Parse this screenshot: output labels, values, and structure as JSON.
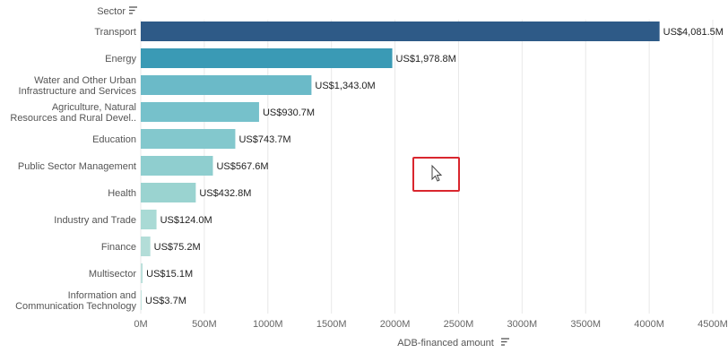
{
  "chart_data": {
    "type": "bar",
    "orientation": "horizontal",
    "ylabel": "Sector",
    "xlabel": "ADB-financed amount",
    "categories": [
      [
        "Transport"
      ],
      [
        "Energy"
      ],
      [
        "Water and Other Urban",
        "Infrastructure and Services"
      ],
      [
        "Agriculture, Natural",
        "Resources and Rural Devel.."
      ],
      [
        "Education"
      ],
      [
        "Public Sector Management"
      ],
      [
        "Health"
      ],
      [
        "Industry and Trade"
      ],
      [
        "Finance"
      ],
      [
        "Multisector"
      ],
      [
        "Information and",
        "Communication Technology"
      ]
    ],
    "values": [
      4081.5,
      1978.8,
      1343.0,
      930.7,
      743.7,
      567.6,
      432.8,
      124.0,
      75.2,
      15.1,
      3.7
    ],
    "value_labels": [
      "US$4,081.5M",
      "US$1,978.8M",
      "US$1,343.0M",
      "US$930.7M",
      "US$743.7M",
      "US$567.6M",
      "US$432.8M",
      "US$124.0M",
      "US$75.2M",
      "US$15.1M",
      "US$3.7M"
    ],
    "bar_colors": [
      "#2e5a87",
      "#3a9ab5",
      "#6bbac8",
      "#76c1cb",
      "#83c8cd",
      "#8fcecf",
      "#9ad3d0",
      "#a9dad5",
      "#b3ddd8",
      "#bde1dc",
      "#c3e4df"
    ],
    "xticks": [
      0,
      500,
      1000,
      1500,
      2000,
      2500,
      3000,
      3500,
      4000,
      4500
    ],
    "xtick_labels": [
      "0M",
      "500M",
      "1000M",
      "1500M",
      "2000M",
      "2500M",
      "3000M",
      "3500M",
      "4000M",
      "4500M"
    ],
    "xlim": [
      0,
      4500
    ],
    "grid": true,
    "legend": "none"
  },
  "icons": {
    "sector_sort": "sort-icon",
    "amount_sort": "sort-icon",
    "pointer": "mouse-pointer-icon"
  },
  "colors": {
    "cursor_highlight": "#d9262e"
  }
}
